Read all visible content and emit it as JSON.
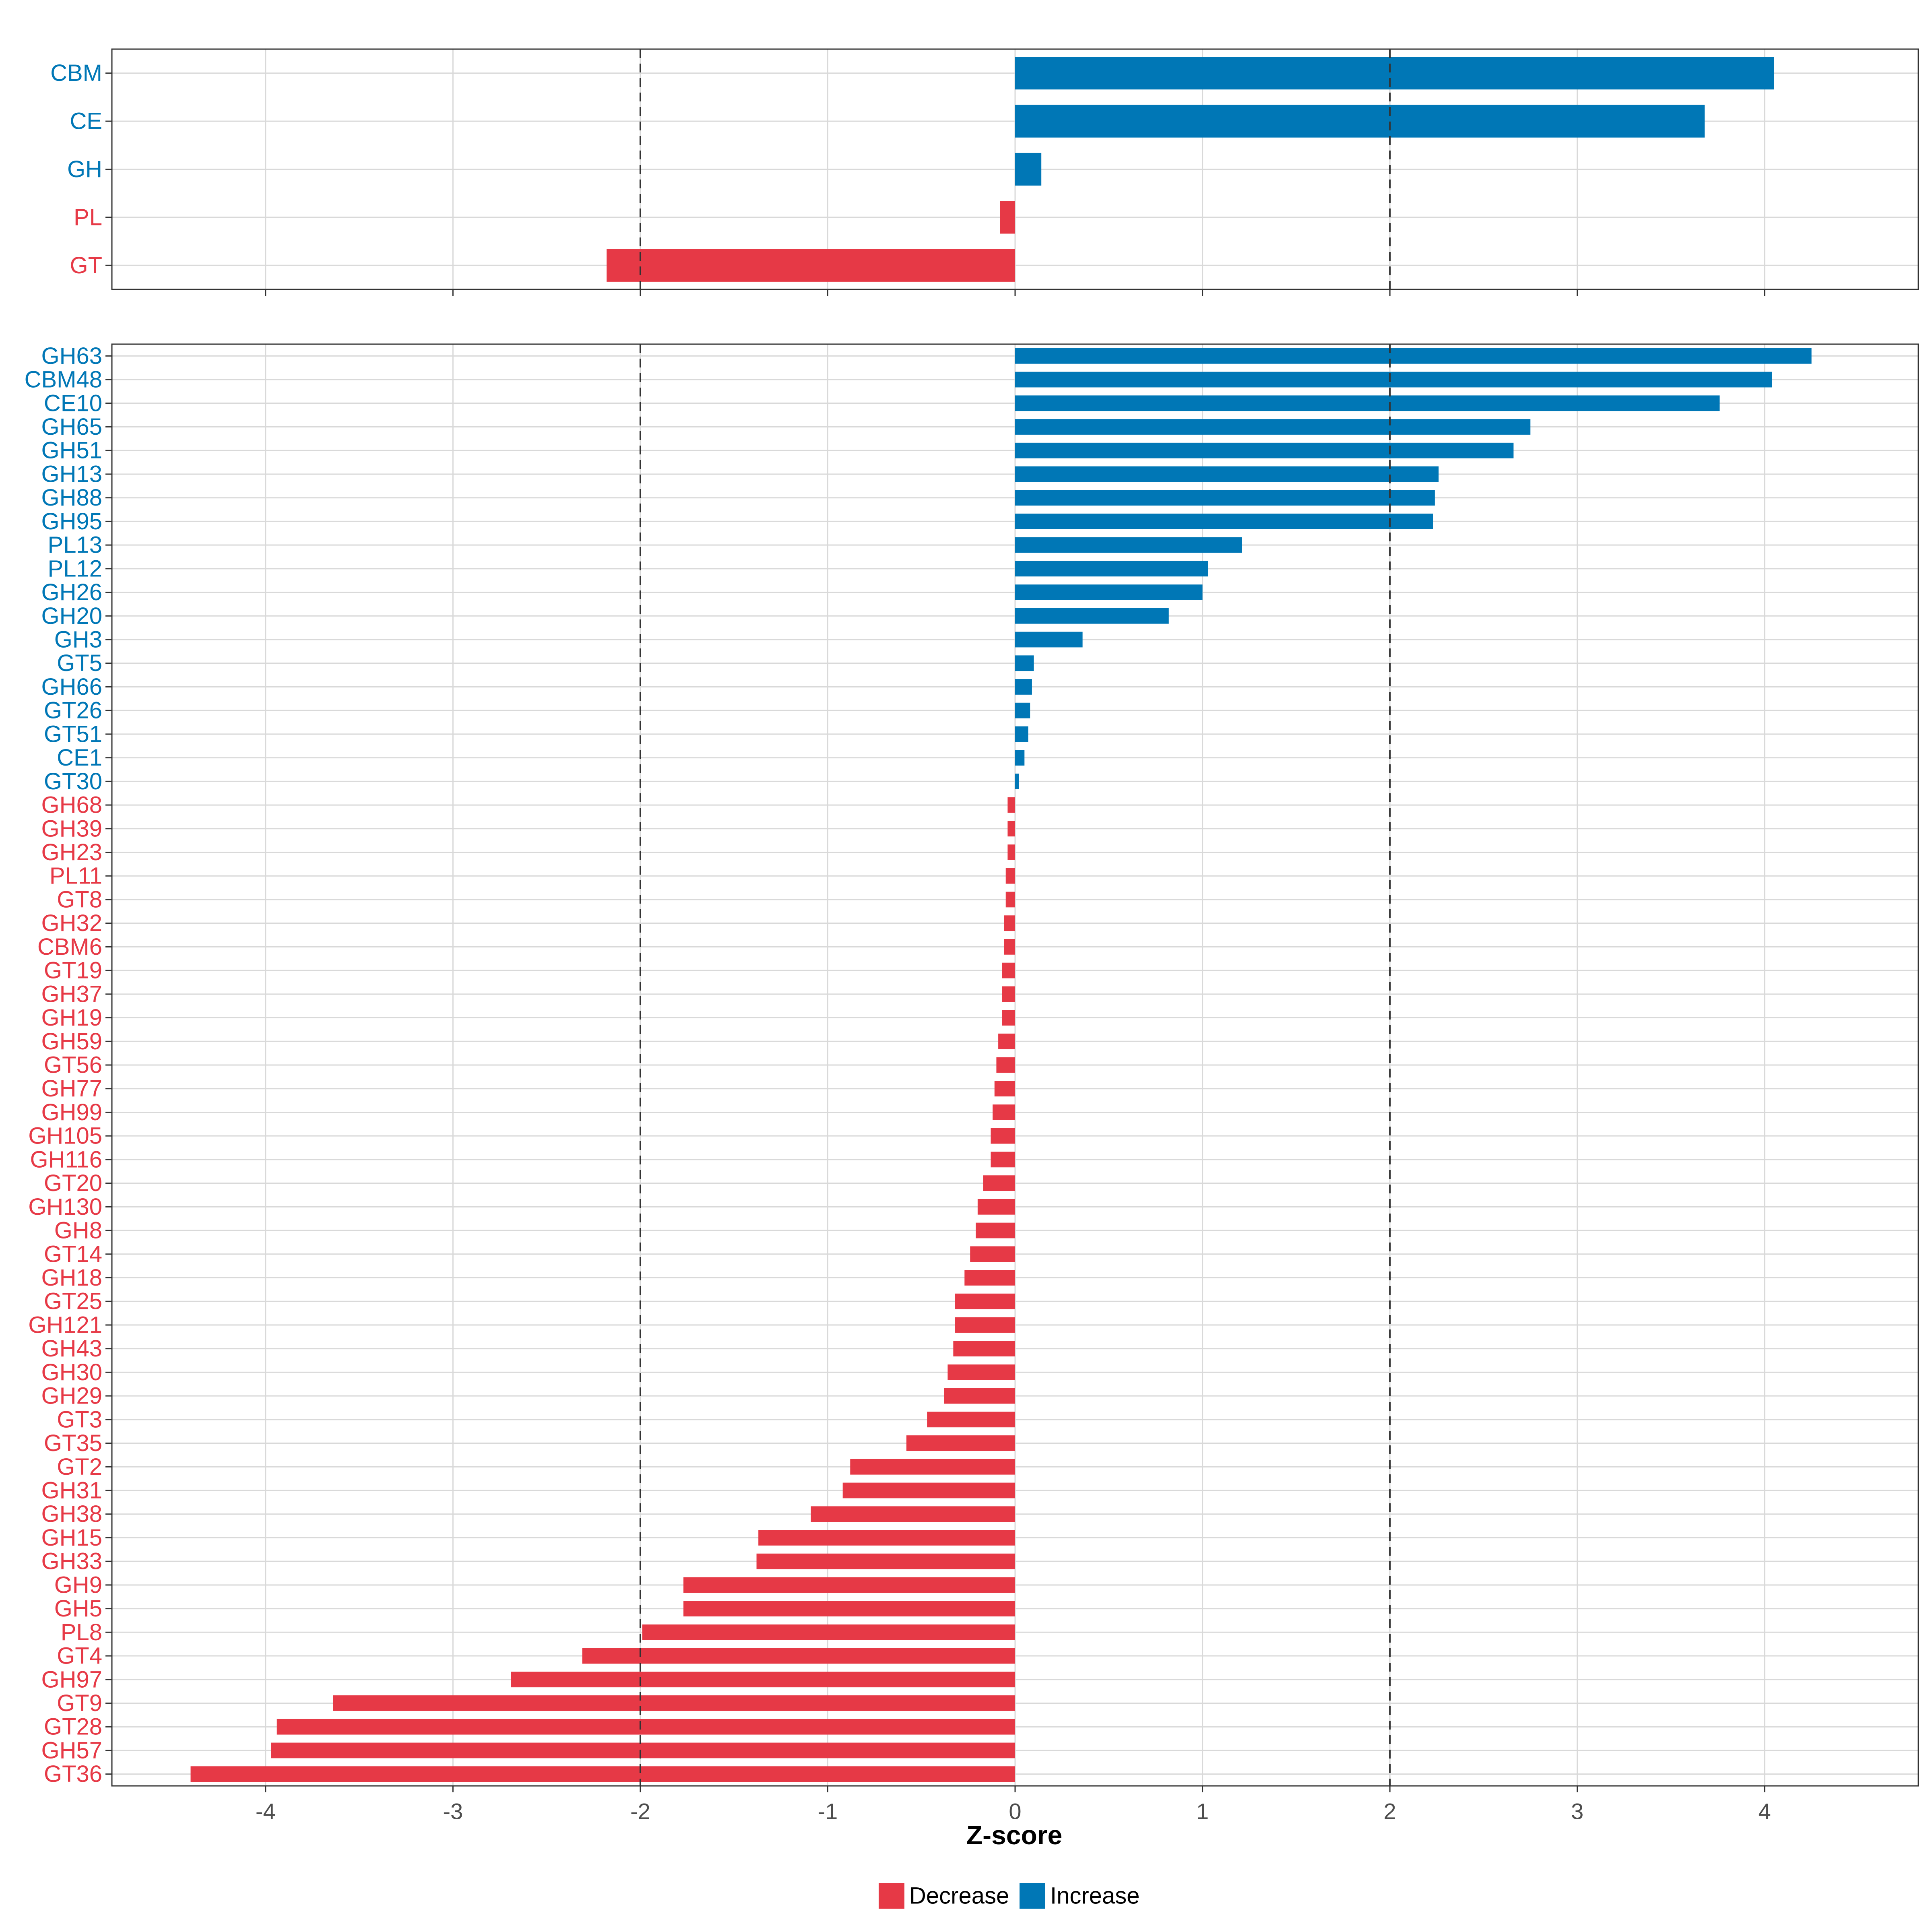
{
  "chart_data": [
    {
      "type": "bar",
      "orientation": "horizontal",
      "panel": "top",
      "categories": [
        "CBM",
        "CE",
        "GH",
        "PL",
        "GT"
      ],
      "values": [
        4.05,
        3.68,
        0.14,
        -0.08,
        -2.18
      ],
      "xlim": [
        -4.82,
        4.82
      ],
      "reference_lines": [
        -2,
        2
      ]
    },
    {
      "type": "bar",
      "orientation": "horizontal",
      "panel": "bottom",
      "categories": [
        "GH63",
        "CBM48",
        "CE10",
        "GH65",
        "GH51",
        "GH13",
        "GH88",
        "GH95",
        "PL13",
        "PL12",
        "GH26",
        "GH20",
        "GH3",
        "GT5",
        "GH66",
        "GT26",
        "GT51",
        "CE1",
        "GT30",
        "GH68",
        "GH39",
        "GH23",
        "PL11",
        "GT8",
        "GH32",
        "CBM6",
        "GT19",
        "GH37",
        "GH19",
        "GH59",
        "GT56",
        "GH77",
        "GH99",
        "GH105",
        "GH116",
        "GT20",
        "GH130",
        "GH8",
        "GT14",
        "GH18",
        "GT25",
        "GH121",
        "GH43",
        "GH30",
        "GH29",
        "GT3",
        "GT35",
        "GT2",
        "GH31",
        "GH38",
        "GH15",
        "GH33",
        "GH9",
        "GH5",
        "PL8",
        "GT4",
        "GH97",
        "GT9",
        "GT28",
        "GH57",
        "GT36"
      ],
      "values": [
        4.25,
        4.04,
        3.76,
        2.75,
        2.66,
        2.26,
        2.24,
        2.23,
        1.21,
        1.03,
        1.0,
        0.82,
        0.36,
        0.1,
        0.09,
        0.08,
        0.07,
        0.05,
        0.02,
        -0.04,
        -0.04,
        -0.04,
        -0.05,
        -0.05,
        -0.06,
        -0.06,
        -0.07,
        -0.07,
        -0.07,
        -0.09,
        -0.1,
        -0.11,
        -0.12,
        -0.13,
        -0.13,
        -0.17,
        -0.2,
        -0.21,
        -0.24,
        -0.27,
        -0.32,
        -0.32,
        -0.33,
        -0.36,
        -0.38,
        -0.47,
        -0.58,
        -0.88,
        -0.92,
        -1.09,
        -1.37,
        -1.38,
        -1.77,
        -1.77,
        -1.99,
        -2.31,
        -2.69,
        -3.64,
        -3.94,
        -3.97,
        -4.4
      ],
      "xlim": [
        -4.82,
        4.82
      ],
      "xlabel": "Z-score",
      "xticks": [
        -4,
        -3,
        -2,
        -1,
        0,
        1,
        2,
        3,
        4
      ],
      "xtick_labels": [
        "-4",
        "-3",
        "-2",
        "-1",
        "0",
        "1",
        "2",
        "3",
        "4"
      ],
      "reference_lines": [
        -2,
        2
      ]
    }
  ],
  "legend": {
    "items": [
      {
        "label": "Decrease",
        "color": "#E63946"
      },
      {
        "label": "Increase",
        "color": "#0077B6"
      }
    ],
    "position": "bottom"
  },
  "colors": {
    "increase": "#0077B6",
    "decrease": "#E63946",
    "grid": "#d9d9d9",
    "border": "#333333",
    "refline": "#333333"
  }
}
